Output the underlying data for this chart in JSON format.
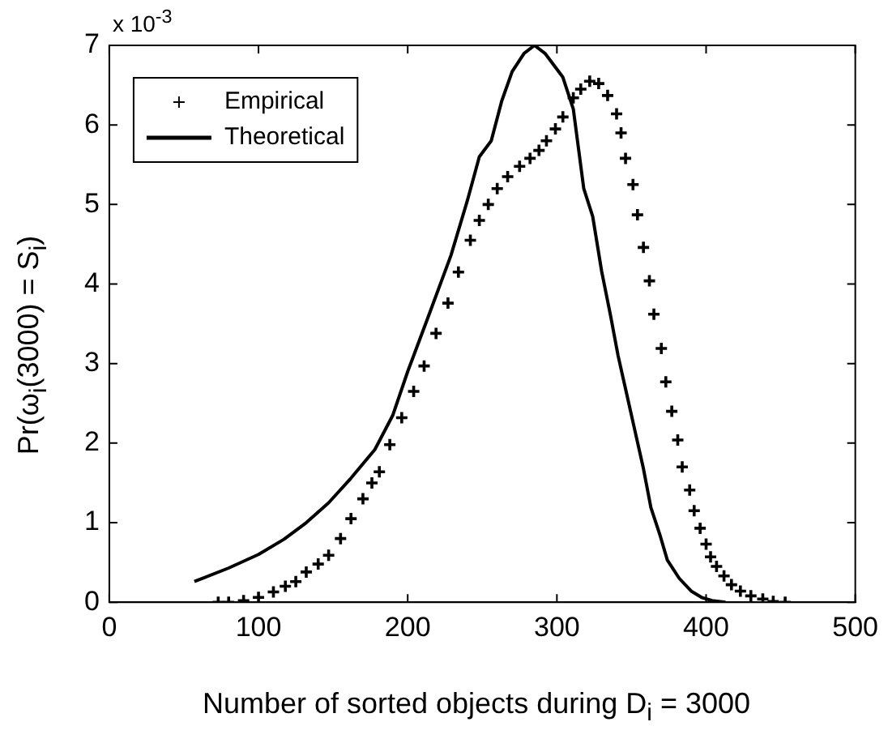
{
  "chart_data": {
    "type": "line",
    "xlabel": "Number of sorted objects during D$_{i}$ = 3000",
    "ylabel": "Pr(ω$_{i}$(3000) = S$_{i}$)",
    "annotations": [
      "x 10$^{-3}$"
    ],
    "xlim": [
      0,
      500
    ],
    "xticks": [
      0,
      100,
      200,
      300,
      400,
      500
    ],
    "ylim": [
      0,
      7
    ],
    "yticks": [
      0,
      1,
      2,
      3,
      4,
      5,
      6,
      7
    ],
    "grid": false,
    "legend": "top left",
    "series": [
      {
        "name": "Empirical",
        "type": "scatter",
        "marker": "cross",
        "color": "#000000",
        "x": [
          73,
          80,
          90,
          100,
          110,
          118,
          125,
          132,
          140,
          147,
          155,
          162,
          170,
          176,
          181,
          188,
          196,
          204,
          211,
          219,
          227,
          234,
          242,
          248,
          254,
          260,
          267,
          275,
          282,
          288,
          293,
          299,
          304,
          311,
          316,
          322,
          328,
          334,
          340,
          343,
          346,
          351,
          354,
          358,
          362,
          365,
          370,
          373,
          377,
          381,
          384,
          389,
          392,
          396,
          400,
          403,
          407,
          412,
          417,
          423,
          430,
          438,
          445,
          453
        ],
        "values": [
          0,
          0,
          0.02,
          0.06,
          0.13,
          0.2,
          0.26,
          0.38,
          0.48,
          0.59,
          0.8,
          1.05,
          1.3,
          1.5,
          1.64,
          1.98,
          2.32,
          2.65,
          2.97,
          3.38,
          3.76,
          4.15,
          4.55,
          4.8,
          5.0,
          5.2,
          5.35,
          5.48,
          5.58,
          5.68,
          5.8,
          5.95,
          6.1,
          6.34,
          6.45,
          6.55,
          6.52,
          6.37,
          6.14,
          5.9,
          5.58,
          5.25,
          4.87,
          4.46,
          4.04,
          3.62,
          3.19,
          2.77,
          2.4,
          2.04,
          1.7,
          1.41,
          1.15,
          0.93,
          0.73,
          0.57,
          0.45,
          0.33,
          0.22,
          0.14,
          0.08,
          0.04,
          0.01,
          0
        ]
      },
      {
        "name": "Theoretical",
        "marker": "none",
        "line_style": "solid",
        "color": "#000000",
        "x": [
          57,
          80,
          100,
          117,
          132,
          147,
          162,
          178,
          190,
          200,
          214,
          229,
          240,
          248,
          256,
          263,
          270,
          278,
          285,
          292,
          298,
          304,
          311,
          318,
          324,
          330,
          336,
          341,
          347,
          352,
          358,
          363,
          369,
          374,
          382,
          390,
          397,
          404,
          413
        ],
        "values": [
          0.26,
          0.43,
          0.6,
          0.79,
          1.0,
          1.25,
          1.56,
          1.92,
          2.35,
          2.9,
          3.6,
          4.36,
          5.05,
          5.6,
          5.8,
          6.3,
          6.67,
          6.9,
          7.0,
          6.9,
          6.75,
          6.6,
          6.2,
          5.2,
          4.85,
          4.16,
          3.6,
          3.1,
          2.6,
          2.18,
          1.68,
          1.19,
          0.85,
          0.53,
          0.3,
          0.14,
          0.06,
          0.02,
          0
        ]
      }
    ]
  }
}
